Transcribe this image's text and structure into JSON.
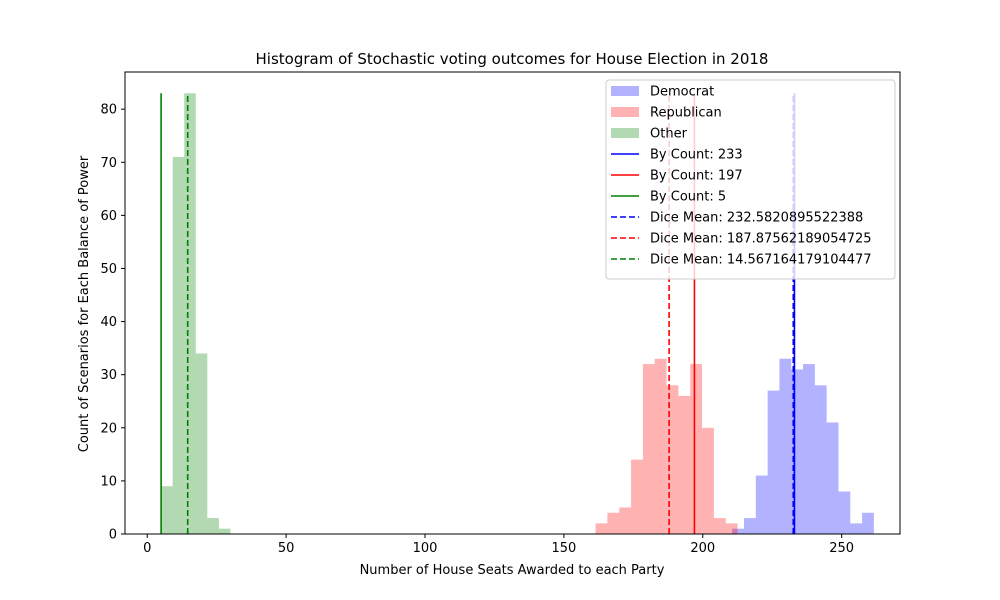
{
  "chart_data": {
    "type": "bar",
    "title": "Histogram of Stochastic voting outcomes for House Election in 2018",
    "xlabel": "Number of House Seats Awarded to each Party",
    "ylabel": "Count of Scenarios for Each Balance of Power",
    "xlim": [
      -8,
      271
    ],
    "ylim": [
      0,
      87
    ],
    "xticks": [
      0,
      50,
      100,
      150,
      200,
      250
    ],
    "yticks": [
      0,
      10,
      20,
      30,
      40,
      50,
      60,
      70,
      80
    ],
    "grid": false,
    "legend_position": "top-right",
    "histograms": [
      {
        "name": "Democrat",
        "color": "#0000ff",
        "alpha": 0.3,
        "bin_start": 210.6,
        "bin_width": 4.25,
        "counts": [
          1,
          3,
          11,
          27,
          33,
          31,
          32,
          28,
          21,
          8,
          2,
          4
        ]
      },
      {
        "name": "Republican",
        "color": "#ff0000",
        "alpha": 0.3,
        "bin_start": 161.4,
        "bin_width": 4.26,
        "counts": [
          2,
          4,
          5,
          14,
          32,
          33,
          28,
          26,
          32,
          20,
          3,
          2
        ]
      },
      {
        "name": "Other",
        "color": "#008000",
        "alpha": 0.3,
        "bin_start": 5.0,
        "bin_width": 4.16,
        "counts": [
          9,
          71,
          83,
          34,
          3,
          1
        ]
      }
    ],
    "vlines": [
      {
        "label": "By Count: 233",
        "x": 233,
        "color": "#0000ff",
        "style": "solid"
      },
      {
        "label": "By Count: 197",
        "x": 197,
        "color": "#ff0000",
        "style": "solid"
      },
      {
        "label": "By Count: 5",
        "x": 5,
        "color": "#008000",
        "style": "solid"
      },
      {
        "label": "Dice Mean: 232.5820895522388",
        "x": 232.58,
        "color": "#0000ff",
        "style": "dashed"
      },
      {
        "label": "Dice Mean: 187.87562189054725",
        "x": 187.88,
        "color": "#ff0000",
        "style": "dashed"
      },
      {
        "label": "Dice Mean: 14.567164179104477",
        "x": 14.57,
        "color": "#008000",
        "style": "dashed"
      }
    ],
    "vline_height": 83
  }
}
